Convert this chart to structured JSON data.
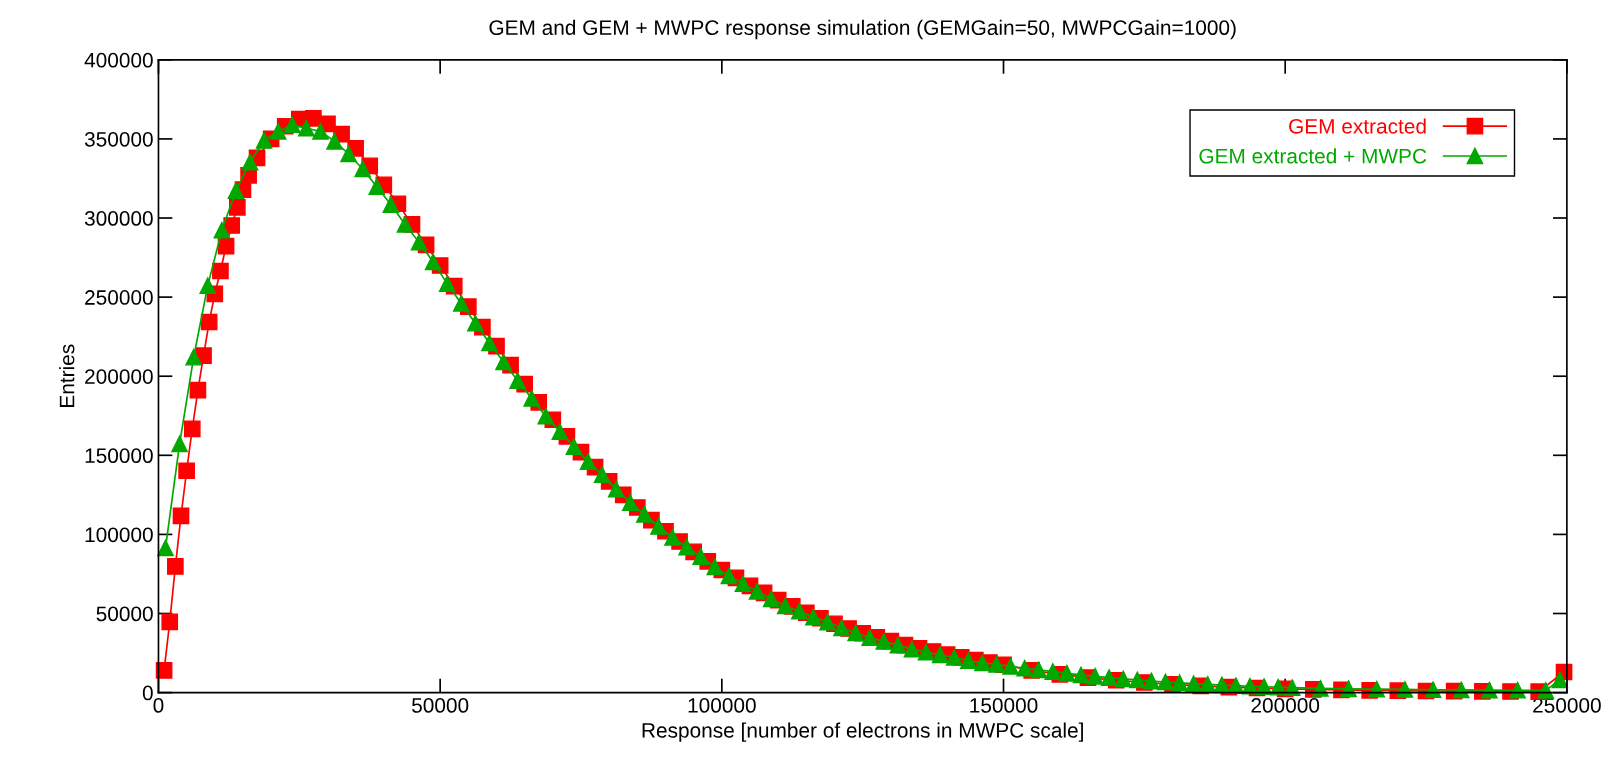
{
  "chart_data": {
    "type": "line",
    "title": "GEM and GEM + MWPC response simulation (GEMGain=50, MWPCGain=1000)",
    "xlabel": "Response [number of electrons in MWPC scale]",
    "ylabel": "Entries",
    "xlim": [
      0,
      250000
    ],
    "xticks": [
      0,
      50000,
      100000,
      150000,
      200000,
      250000
    ],
    "ylim": [
      0,
      400000
    ],
    "yticks": [
      0,
      50000,
      100000,
      150000,
      200000,
      250000,
      300000,
      350000,
      400000
    ],
    "grid": false,
    "legend": "top right",
    "line_style": "solid",
    "series": [
      {
        "name": "GEM extracted",
        "color": "#ff0000",
        "marker": "square",
        "x": [
          1000,
          2000,
          3000,
          4000,
          5000,
          6000,
          7000,
          8000,
          9000,
          10000,
          11000,
          12000,
          13000,
          14000,
          15000,
          16000,
          17500,
          20000,
          22500,
          25000,
          27500,
          30000,
          32500,
          35000,
          37500,
          40000,
          42500,
          45000,
          47500,
          50000,
          52500,
          55000,
          57500,
          60000,
          62500,
          65000,
          67500,
          70000,
          72500,
          75000,
          77500,
          80000,
          82500,
          85000,
          87500,
          90000,
          92500,
          95000,
          97500,
          100000,
          102500,
          105000,
          107500,
          110000,
          112500,
          115000,
          117500,
          120000,
          122500,
          125000,
          127500,
          130000,
          132500,
          135000,
          137500,
          140000,
          142500,
          145000,
          147500,
          150000,
          155000,
          160000,
          165000,
          170000,
          175000,
          180000,
          185000,
          190000,
          195000,
          200000,
          205000,
          210000,
          215000,
          220000,
          225000,
          230000,
          235000,
          240000,
          245000,
          249500
        ],
        "values": [
          14000,
          44750,
          79750,
          111750,
          140250,
          166750,
          191250,
          213000,
          234250,
          252000,
          266500,
          282250,
          295250,
          306750,
          318000,
          327000,
          338000,
          350000,
          358000,
          362500,
          363000,
          359500,
          353000,
          344000,
          333000,
          321000,
          309000,
          296000,
          283000,
          270000,
          257000,
          244000,
          231000,
          219000,
          207000,
          195000,
          183500,
          172500,
          162000,
          152000,
          142500,
          133500,
          125000,
          117000,
          109000,
          102000,
          95500,
          89000,
          83000,
          77500,
          72500,
          67500,
          63000,
          58500,
          54500,
          50500,
          47000,
          43500,
          40500,
          37500,
          35000,
          32500,
          30000,
          28000,
          26000,
          24000,
          22300,
          20600,
          19000,
          17600,
          14000,
          11500,
          9500,
          7800,
          6400,
          5200,
          4300,
          3500,
          2900,
          2400,
          2000,
          1700,
          1400,
          1200,
          1000,
          900,
          800,
          700,
          600,
          13000
        ]
      },
      {
        "name": "GEM extracted + MWPC",
        "color": "#00a800",
        "marker": "triangle",
        "x": [
          1250,
          3750,
          6250,
          8750,
          11250,
          13750,
          16250,
          18750,
          21250,
          23750,
          26250,
          28750,
          31250,
          33750,
          36250,
          38750,
          41250,
          43750,
          46250,
          48750,
          51250,
          53750,
          56250,
          58750,
          61250,
          63750,
          66250,
          68750,
          71250,
          73750,
          76250,
          78750,
          81250,
          83750,
          86250,
          88750,
          91250,
          93750,
          96250,
          98750,
          101250,
          103750,
          106250,
          108750,
          111250,
          113750,
          116250,
          118750,
          121250,
          123750,
          126250,
          128750,
          131250,
          133750,
          136250,
          138750,
          141250,
          143750,
          146250,
          148750,
          151250,
          153750,
          156250,
          158750,
          161250,
          163750,
          166250,
          168750,
          171250,
          173750,
          176250,
          178750,
          181250,
          183750,
          186250,
          188750,
          191250,
          193750,
          196250,
          198750,
          201250,
          206250,
          211250,
          216250,
          221250,
          226250,
          231250,
          236250,
          241250,
          246250,
          248750
        ],
        "values": [
          91500,
          157250,
          212000,
          257250,
          292250,
          317250,
          335250,
          349000,
          354750,
          359000,
          356750,
          354750,
          348500,
          340500,
          331000,
          319750,
          308500,
          296000,
          284750,
          272250,
          258500,
          246000,
          233500,
          221000,
          209000,
          197250,
          186000,
          174750,
          165000,
          155500,
          146000,
          137800,
          128600,
          120000,
          112700,
          105000,
          98100,
          92000,
          86000,
          79400,
          73800,
          68900,
          64000,
          59200,
          54800,
          51400,
          47700,
          44600,
          40900,
          37700,
          34800,
          32400,
          30000,
          27500,
          25600,
          23900,
          22200,
          20200,
          18700,
          17800,
          16600,
          15500,
          14400,
          13300,
          12200,
          11200,
          10300,
          9500,
          8700,
          8000,
          7300,
          6700,
          6200,
          5700,
          5200,
          4800,
          4400,
          4000,
          3700,
          3400,
          3100,
          2700,
          2400,
          2200,
          2000,
          1800,
          1700,
          1600,
          1500,
          1400,
          8000
        ]
      }
    ]
  }
}
